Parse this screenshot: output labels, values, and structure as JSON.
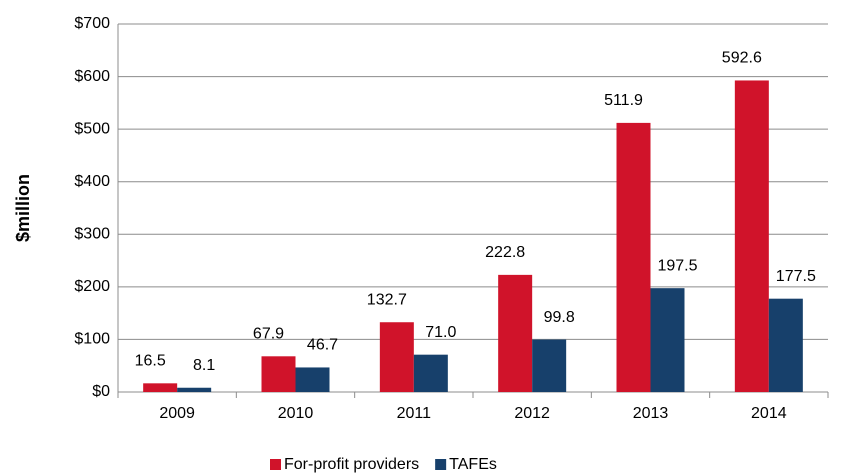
{
  "chart_data": {
    "type": "bar",
    "ylabel": "$million",
    "categories": [
      "2009",
      "2010",
      "2011",
      "2012",
      "2013",
      "2014"
    ],
    "series": [
      {
        "name": "For-profit providers",
        "color": "#d0132a",
        "values": [
          16.5,
          67.9,
          132.7,
          222.8,
          511.9,
          592.6
        ],
        "value_labels": [
          "16.5",
          "67.9",
          "132.7",
          "222.8",
          "511.9",
          "592.6"
        ]
      },
      {
        "name": "TAFEs",
        "color": "#17406b",
        "values": [
          8.1,
          46.7,
          71.0,
          99.8,
          197.5,
          177.5
        ],
        "value_labels": [
          "8.1",
          "46.7",
          "71.0",
          "99.8",
          "197.5",
          "177.5"
        ]
      }
    ],
    "ylim": [
      0,
      700
    ],
    "yticks": [
      {
        "value": 0,
        "label": "$0"
      },
      {
        "value": 100,
        "label": "$100"
      },
      {
        "value": 200,
        "label": "$200"
      },
      {
        "value": 300,
        "label": "$300"
      },
      {
        "value": 400,
        "label": "$400"
      },
      {
        "value": 500,
        "label": "$500"
      },
      {
        "value": 600,
        "label": "$600"
      },
      {
        "value": 700,
        "label": "$700"
      }
    ],
    "grid": true,
    "legend": "bottom"
  }
}
